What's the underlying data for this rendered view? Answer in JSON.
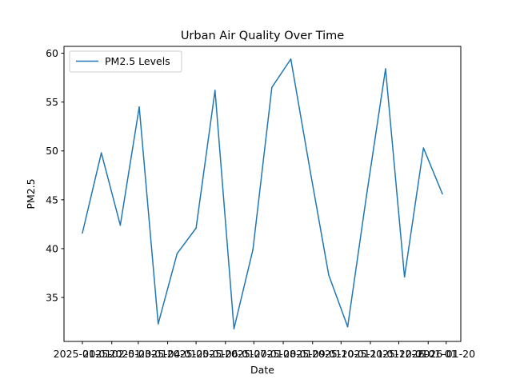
{
  "chart_data": {
    "type": "line",
    "title": "Urban Air Quality Over Time",
    "xlabel": "Date",
    "ylabel": "PM2.5",
    "ylim": [
      30.5,
      60.7
    ],
    "yticks": [
      35,
      40,
      45,
      50,
      55,
      60
    ],
    "grid": false,
    "legend_position": "top-left",
    "x": [
      "2025-01-01",
      "2025-01-21",
      "2025-02-10",
      "2025-03-02",
      "2025-03-22",
      "2025-04-11",
      "2025-05-01",
      "2025-05-21",
      "2025-06-10",
      "2025-06-30",
      "2025-07-20",
      "2025-08-09",
      "2025-08-29",
      "2025-09-18",
      "2025-10-08",
      "2025-10-28",
      "2025-11-17",
      "2025-12-07",
      "2025-12-27",
      "2026-01-16"
    ],
    "xtick_labels": [
      "2025-01-01",
      "2025-02-01",
      "2025-03-01",
      "2025-04-01",
      "2025-05-01",
      "2025-06-01",
      "2025-07-01",
      "2025-08-01",
      "2025-09-01",
      "2025-10-01",
      "2025-11-01",
      "2025-12-01",
      "2026-01-01",
      "2026-01-20"
    ],
    "series": [
      {
        "name": "PM2.5 Levels",
        "color": "#1f77b4",
        "values": [
          41.6,
          49.8,
          42.4,
          54.5,
          32.3,
          39.5,
          42.1,
          56.2,
          31.8,
          39.9,
          56.5,
          59.4,
          48.2,
          37.3,
          32.0,
          45.5,
          58.4,
          37.1,
          50.3,
          45.6
        ]
      }
    ]
  }
}
